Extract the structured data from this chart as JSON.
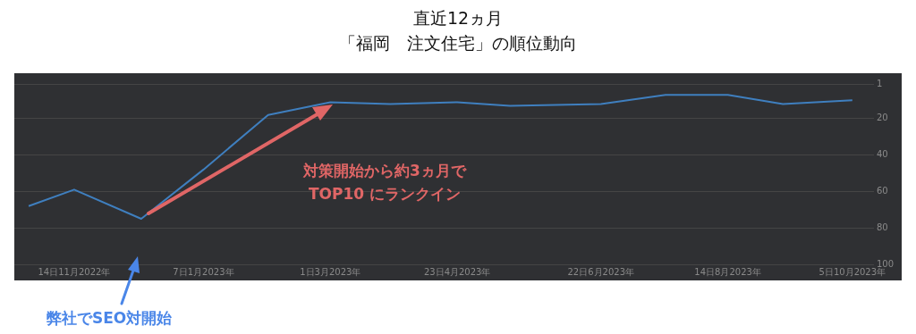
{
  "chart_data": {
    "type": "line",
    "title": "直近12ヵ月",
    "subtitle": "「福岡　注文住宅」の順位動向",
    "x": [
      "2022-10-26",
      "2022-11-14",
      "2022-12-12",
      "2023-01-07",
      "2023-02-03",
      "2023-03-01",
      "2023-03-26",
      "2023-04-23",
      "2023-05-15",
      "2023-06-22",
      "2023-07-19",
      "2023-08-14",
      "2023-09-06",
      "2023-10-05"
    ],
    "series": [
      {
        "color": "#3f7fbf",
        "values": [
          68,
          59,
          75,
          48,
          18,
          11,
          12,
          11,
          13,
          12,
          7,
          7,
          12,
          10
        ]
      }
    ],
    "xlim": [
      "2022-10-20",
      "2023-10-14"
    ],
    "xticks": [
      {
        "value": "2022-11-14",
        "label": "14日11月2022年"
      },
      {
        "value": "2023-01-07",
        "label": "7日1月2023年"
      },
      {
        "value": "2023-03-01",
        "label": "1日3月2023年"
      },
      {
        "value": "2023-04-23",
        "label": "23日4月2023年"
      },
      {
        "value": "2023-06-22",
        "label": "22日6月2023年"
      },
      {
        "value": "2023-08-14",
        "label": "14日8月2023年"
      },
      {
        "value": "2023-10-05",
        "label": "5日10月2023年"
      }
    ],
    "ylim": [
      100,
      1
    ],
    "yticks": [
      1,
      20,
      40,
      60,
      80,
      100
    ],
    "grid": "y",
    "legend": false,
    "marker": "none",
    "line_style": "solid",
    "annotations": [
      "対策開始から約3ヵ月で\nTOP10 にランクイン",
      "弊社でSEO対開始"
    ]
  }
}
